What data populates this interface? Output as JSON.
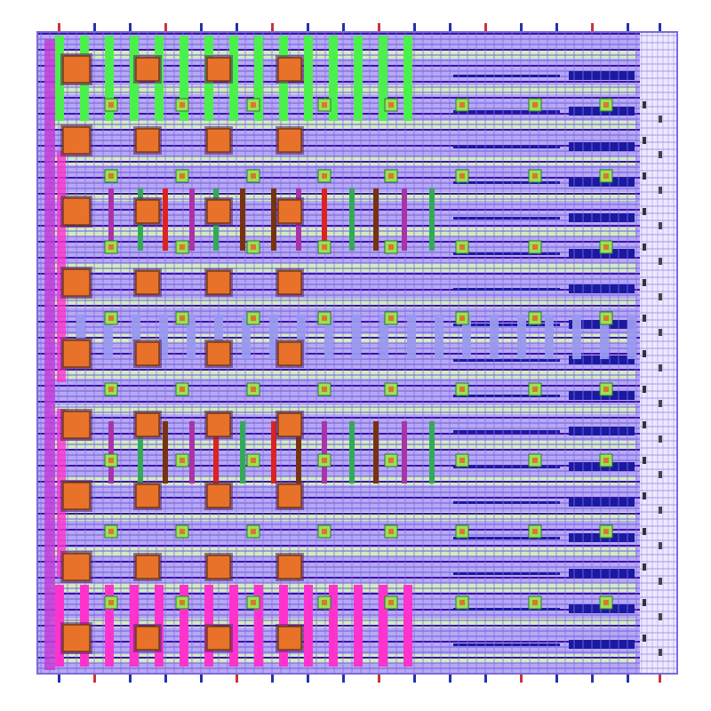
{
  "layout": {
    "pad_columns": 4,
    "pad_rows": 9,
    "via_columns": 8,
    "via_rows": 8,
    "top_pins": 19,
    "left_decap_pads": 8,
    "colors": {
      "background": "#ffffff",
      "outline": "#7a6bd8",
      "metal_hstripe_dark": "#3a13a6",
      "metal_hstripe": "#6a5ae0",
      "metal_vstripe": "#8a6cf0",
      "navy_rail": "#1a1aa0",
      "lightgreen_band": "#d6f2b8",
      "green_strap": "#4cf04c",
      "magenta_strap": "#ff33cc",
      "orange_pad": "#e8722a",
      "pad_border": "#7a3a10",
      "via_cell": "#9be05a",
      "vertical_bar_a": "#33aa55",
      "vertical_bar_b": "#dd2222",
      "vertical_bar_c": "#aa33aa",
      "vertical_bar_d": "#773311",
      "lavender_block": "#9999ee",
      "pin_red": "#cc3333",
      "pin_blue": "#2233aa"
    }
  }
}
